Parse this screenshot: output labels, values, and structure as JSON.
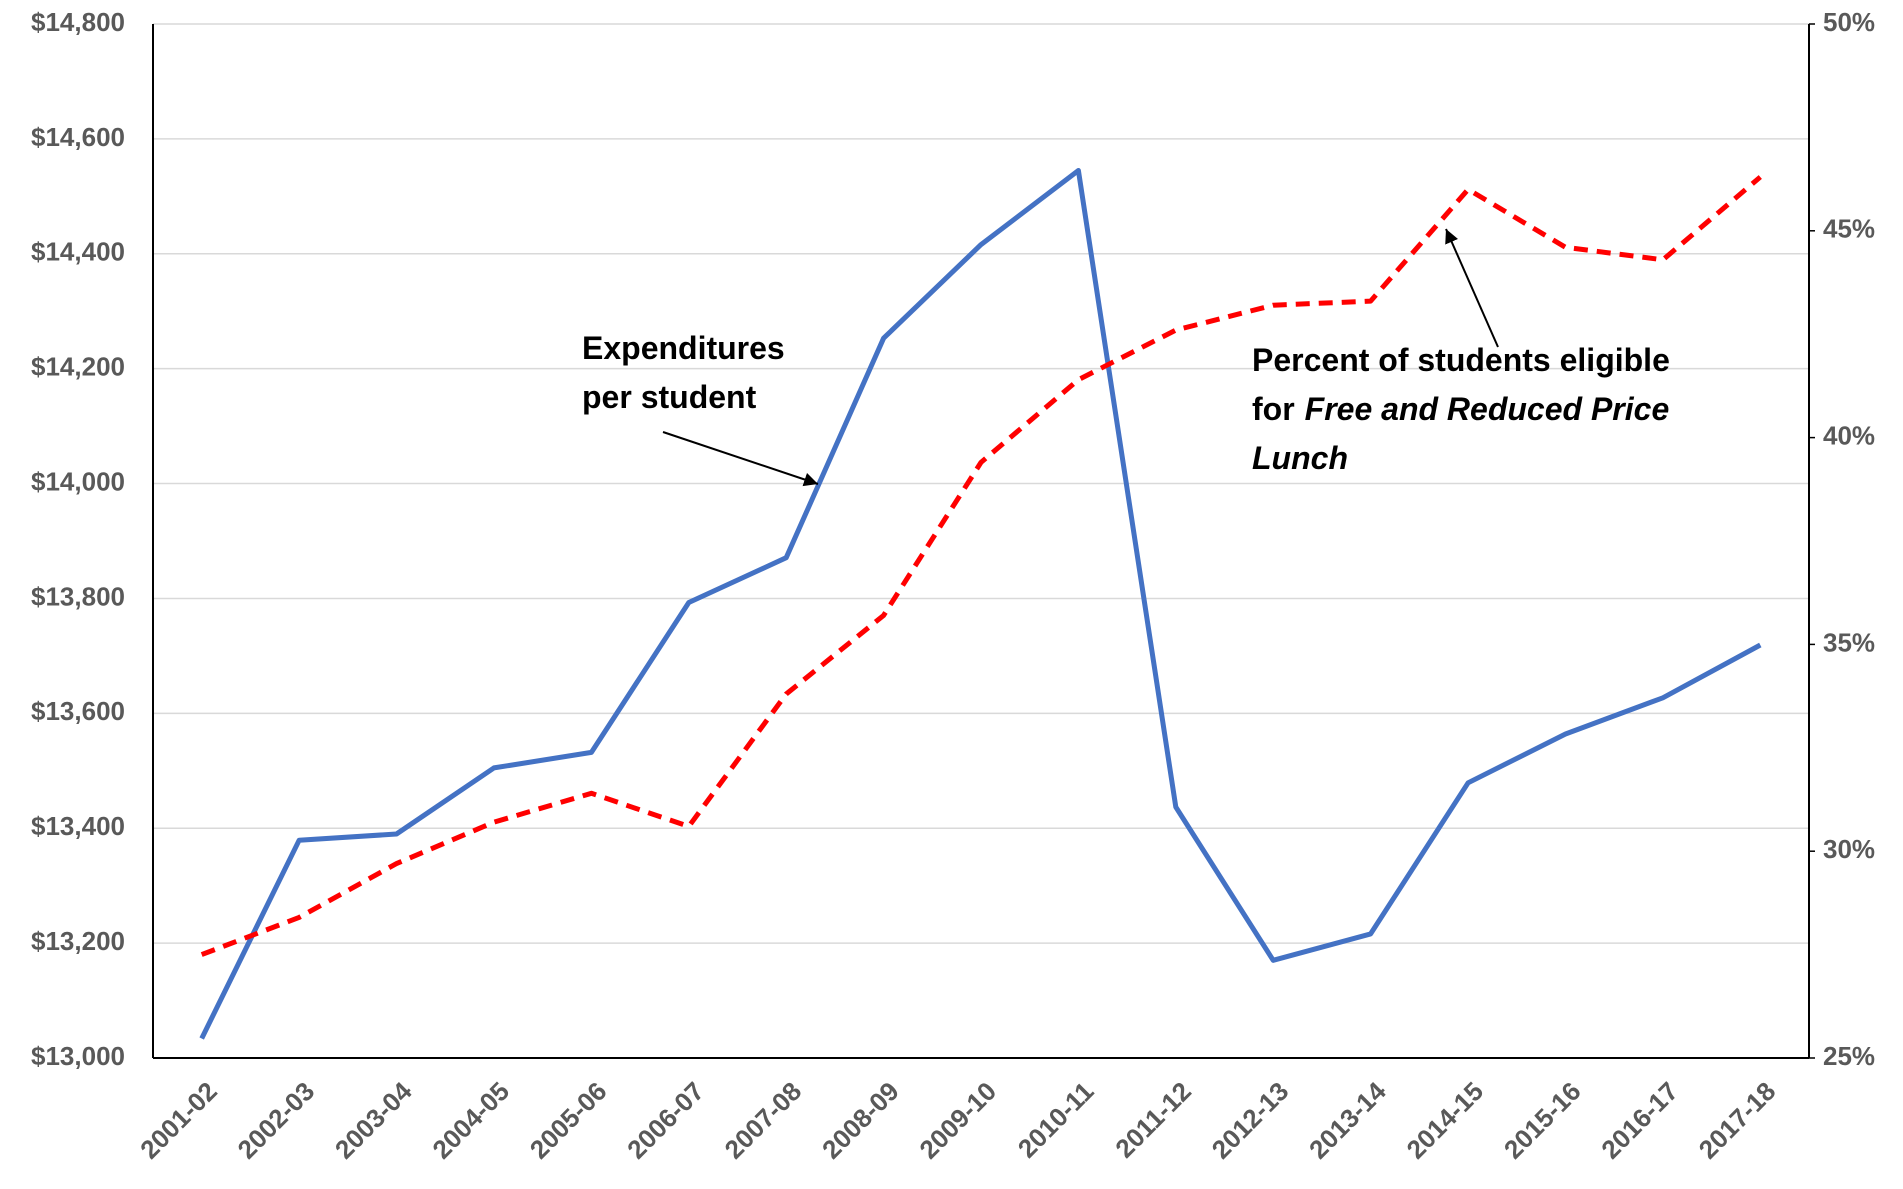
{
  "chart_data": {
    "type": "line",
    "categories": [
      "2001-02",
      "2002-03",
      "2003-04",
      "2004-05",
      "2005-06",
      "2006-07",
      "2007-08",
      "2008-09",
      "2009-10",
      "2010-11",
      "2011-12",
      "2012-13",
      "2013-14",
      "2014-15",
      "2015-16",
      "2016-17",
      "2017-18"
    ],
    "series": [
      {
        "name": "Expenditures per student",
        "color": "#4472c4",
        "dashed": false,
        "axis": "y",
        "values": [
          13034,
          13379,
          13390,
          13505,
          13532,
          13793,
          13871,
          14253,
          14416,
          14545,
          13437,
          13170,
          13216,
          13479,
          13564,
          13627,
          13719
        ]
      },
      {
        "name": "Percent of students eligible for Free and Reduced Price Lunch",
        "color": "#ff0000",
        "dashed": true,
        "axis": "y2",
        "values": [
          27.5,
          28.4,
          29.7,
          30.7,
          31.4,
          30.6,
          33.8,
          35.7,
          39.4,
          41.4,
          42.6,
          43.2,
          43.3,
          46.0,
          44.6,
          44.3,
          46.3
        ]
      }
    ],
    "ylim": [
      13000,
      14800
    ],
    "yticks": [
      {
        "value": 13000,
        "label": "$13,000"
      },
      {
        "value": 13200,
        "label": "$13,200"
      },
      {
        "value": 13400,
        "label": "$13,400"
      },
      {
        "value": 13600,
        "label": "$13,600"
      },
      {
        "value": 13800,
        "label": "$13,800"
      },
      {
        "value": 14000,
        "label": "$14,000"
      },
      {
        "value": 14200,
        "label": "$14,200"
      },
      {
        "value": 14400,
        "label": "$14,400"
      },
      {
        "value": 14600,
        "label": "$14,600"
      },
      {
        "value": 14800,
        "label": "$14,800"
      }
    ],
    "y2lim": [
      25,
      50
    ],
    "y2ticks": [
      {
        "value": 25,
        "label": "25%"
      },
      {
        "value": 30,
        "label": "30%"
      },
      {
        "value": 35,
        "label": "35%"
      },
      {
        "value": 40,
        "label": "40%"
      },
      {
        "value": 45,
        "label": "45%"
      },
      {
        "value": 50,
        "label": "50%"
      }
    ],
    "grid": true,
    "annotations": [
      {
        "lines": [
          [
            {
              "text": "Expenditures",
              "italic": false
            }
          ],
          [
            {
              "text": "per student",
              "italic": false
            }
          ]
        ]
      },
      {
        "lines": [
          [
            {
              "text": "Percent of students eligible",
              "italic": false
            }
          ],
          [
            {
              "text": "for",
              "italic": false
            },
            {
              "text": "Free and Reduced Price",
              "italic": true
            }
          ],
          [
            {
              "text": "Lunch",
              "italic": true
            }
          ]
        ]
      }
    ]
  }
}
